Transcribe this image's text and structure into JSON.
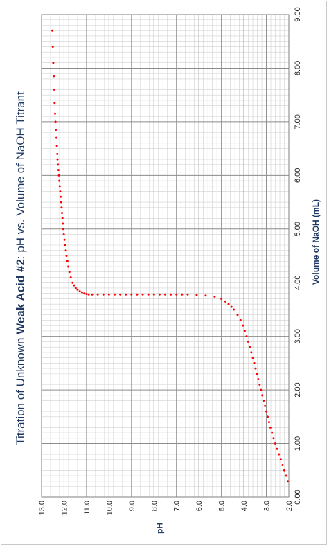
{
  "chart_data": {
    "type": "scatter",
    "title_prefix": "Titration of Unknown ",
    "title_bold": "Weak Acid #2",
    "title_suffix": ": pH vs. Volume of NaOH Titrant",
    "xlabel": "Volume of NaOH (mL)",
    "ylabel": "pH",
    "xlim": [
      0,
      9
    ],
    "ylim": [
      2,
      13
    ],
    "x_ticks": [
      "0.00",
      "1.00",
      "2.00",
      "3.00",
      "4.00",
      "5.00",
      "6.00",
      "7.00",
      "8.00",
      "9.00"
    ],
    "y_ticks": [
      "2.0",
      "3.0",
      "4.0",
      "5.0",
      "6.0",
      "7.0",
      "8.0",
      "9.0",
      "10.0",
      "11.0",
      "12.0",
      "13.0"
    ],
    "grid": true,
    "marker_color": "#ff0000",
    "series": [
      {
        "x": [
          0.3,
          0.4,
          0.5,
          0.6,
          0.7,
          0.8,
          0.9,
          1.0,
          1.1,
          1.2,
          1.3,
          1.4,
          1.5,
          1.6,
          1.7,
          1.8,
          1.9,
          2.0,
          2.1,
          2.2,
          2.3,
          2.4,
          2.5,
          2.6,
          2.7,
          2.8,
          2.9,
          3.0,
          3.1,
          3.2,
          3.3,
          3.4,
          3.5,
          3.55,
          3.6,
          3.65,
          3.7,
          3.74,
          3.76,
          3.77,
          3.78,
          3.78,
          3.78,
          3.78,
          3.78,
          3.78,
          3.78,
          3.78,
          3.78,
          3.78,
          3.78,
          3.78,
          3.78,
          3.78,
          3.78,
          3.78,
          3.78,
          3.78,
          3.78,
          3.79,
          3.8,
          3.82,
          3.84,
          3.87,
          3.9,
          3.95,
          4.0,
          4.1,
          4.2,
          4.3,
          4.4,
          4.5,
          4.6,
          4.7,
          4.8,
          4.9,
          5.0,
          5.1,
          5.2,
          5.3,
          5.4,
          5.5,
          5.6,
          5.7,
          5.8,
          5.9,
          6.0,
          6.1,
          6.2,
          6.3,
          6.4,
          6.55,
          6.7,
          6.85,
          7.0,
          7.15,
          7.35,
          7.6,
          7.85,
          8.1,
          8.4,
          8.7
        ],
        "y": [
          2.05,
          2.12,
          2.2,
          2.28,
          2.36,
          2.44,
          2.52,
          2.6,
          2.68,
          2.75,
          2.82,
          2.88,
          2.94,
          3.0,
          3.06,
          3.12,
          3.18,
          3.24,
          3.3,
          3.36,
          3.42,
          3.48,
          3.54,
          3.6,
          3.67,
          3.74,
          3.81,
          3.88,
          3.96,
          4.05,
          4.15,
          4.28,
          4.45,
          4.55,
          4.68,
          4.82,
          5.0,
          5.3,
          5.7,
          6.1,
          6.5,
          6.75,
          7.0,
          7.25,
          7.5,
          7.75,
          8.0,
          8.25,
          8.5,
          8.75,
          9.0,
          9.25,
          9.5,
          9.75,
          10.0,
          10.25,
          10.5,
          10.75,
          10.9,
          11.0,
          11.1,
          11.2,
          11.3,
          11.4,
          11.48,
          11.55,
          11.62,
          11.7,
          11.76,
          11.81,
          11.85,
          11.89,
          11.92,
          11.95,
          11.98,
          12.01,
          12.03,
          12.05,
          12.07,
          12.09,
          12.11,
          12.13,
          12.15,
          12.17,
          12.19,
          12.21,
          12.23,
          12.25,
          12.27,
          12.29,
          12.3,
          12.32,
          12.34,
          12.36,
          12.38,
          12.4,
          12.42,
          12.44,
          12.46,
          12.48,
          12.5,
          12.52
        ]
      }
    ]
  }
}
